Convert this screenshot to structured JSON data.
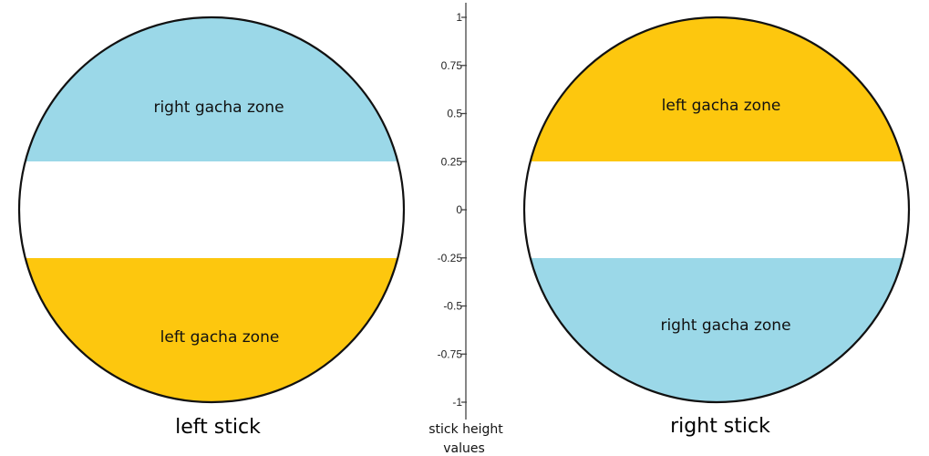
{
  "colors": {
    "right_zone": "#9bd8e8",
    "left_zone": "#fdc70e",
    "outline": "#111111",
    "axis": "#444444"
  },
  "left_stick": {
    "label": "left stick",
    "top_zone": {
      "label": "right gacha zone",
      "color_key": "right_zone"
    },
    "bottom_zone": {
      "label": "left gacha zone",
      "color_key": "left_zone"
    }
  },
  "right_stick": {
    "label": "right stick",
    "top_zone": {
      "label": "left gacha zone",
      "color_key": "left_zone"
    },
    "bottom_zone": {
      "label": "right gacha zone",
      "color_key": "right_zone"
    }
  },
  "axis": {
    "title_line1": "stick height",
    "title_line2": "values",
    "ticks": [
      "1",
      "0.75",
      "0.5",
      "0.25",
      "0",
      "-0.25",
      "-0.5",
      "-0.75",
      "-1"
    ],
    "tick_values": [
      1,
      0.75,
      0.5,
      0.25,
      0,
      -0.25,
      -0.5,
      -0.75,
      -1
    ],
    "range": [
      -1,
      1
    ],
    "zone_threshold": 0.25
  }
}
